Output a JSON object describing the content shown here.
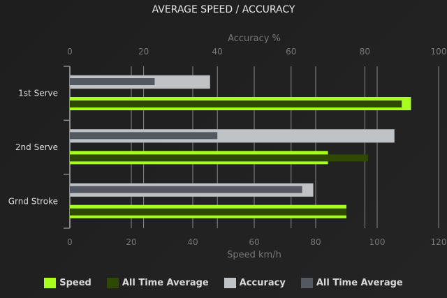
{
  "chart_data": {
    "type": "bar",
    "orientation": "horizontal",
    "title": "AVERAGE SPEED / ACCURACY",
    "categories": [
      "1st Serve",
      "2nd Serve",
      "Grnd Stroke"
    ],
    "x_axis_bottom": {
      "label": "Speed km/h",
      "range": [
        0,
        120
      ],
      "ticks": [
        0,
        20,
        40,
        60,
        80,
        100,
        120
      ]
    },
    "x_axis_top": {
      "label": "Accuracy %",
      "range": [
        0,
        100
      ],
      "ticks": [
        0,
        20,
        40,
        60,
        80,
        100
      ]
    },
    "grid": true,
    "legend_position": "bottom",
    "series": [
      {
        "name": "Speed",
        "axis": "bottom",
        "color": "#a8ff1e",
        "values": [
          111,
          84,
          90
        ]
      },
      {
        "name": "All Time Average",
        "axis": "bottom",
        "color": "#2f4a00",
        "values": [
          108,
          97,
          90
        ]
      },
      {
        "name": "Accuracy",
        "axis": "top",
        "color": "#bfc3c6",
        "values": [
          38,
          88,
          66
        ]
      },
      {
        "name": "All Time Average",
        "axis": "top",
        "color": "#545961",
        "values": [
          23,
          40,
          63
        ]
      }
    ]
  }
}
